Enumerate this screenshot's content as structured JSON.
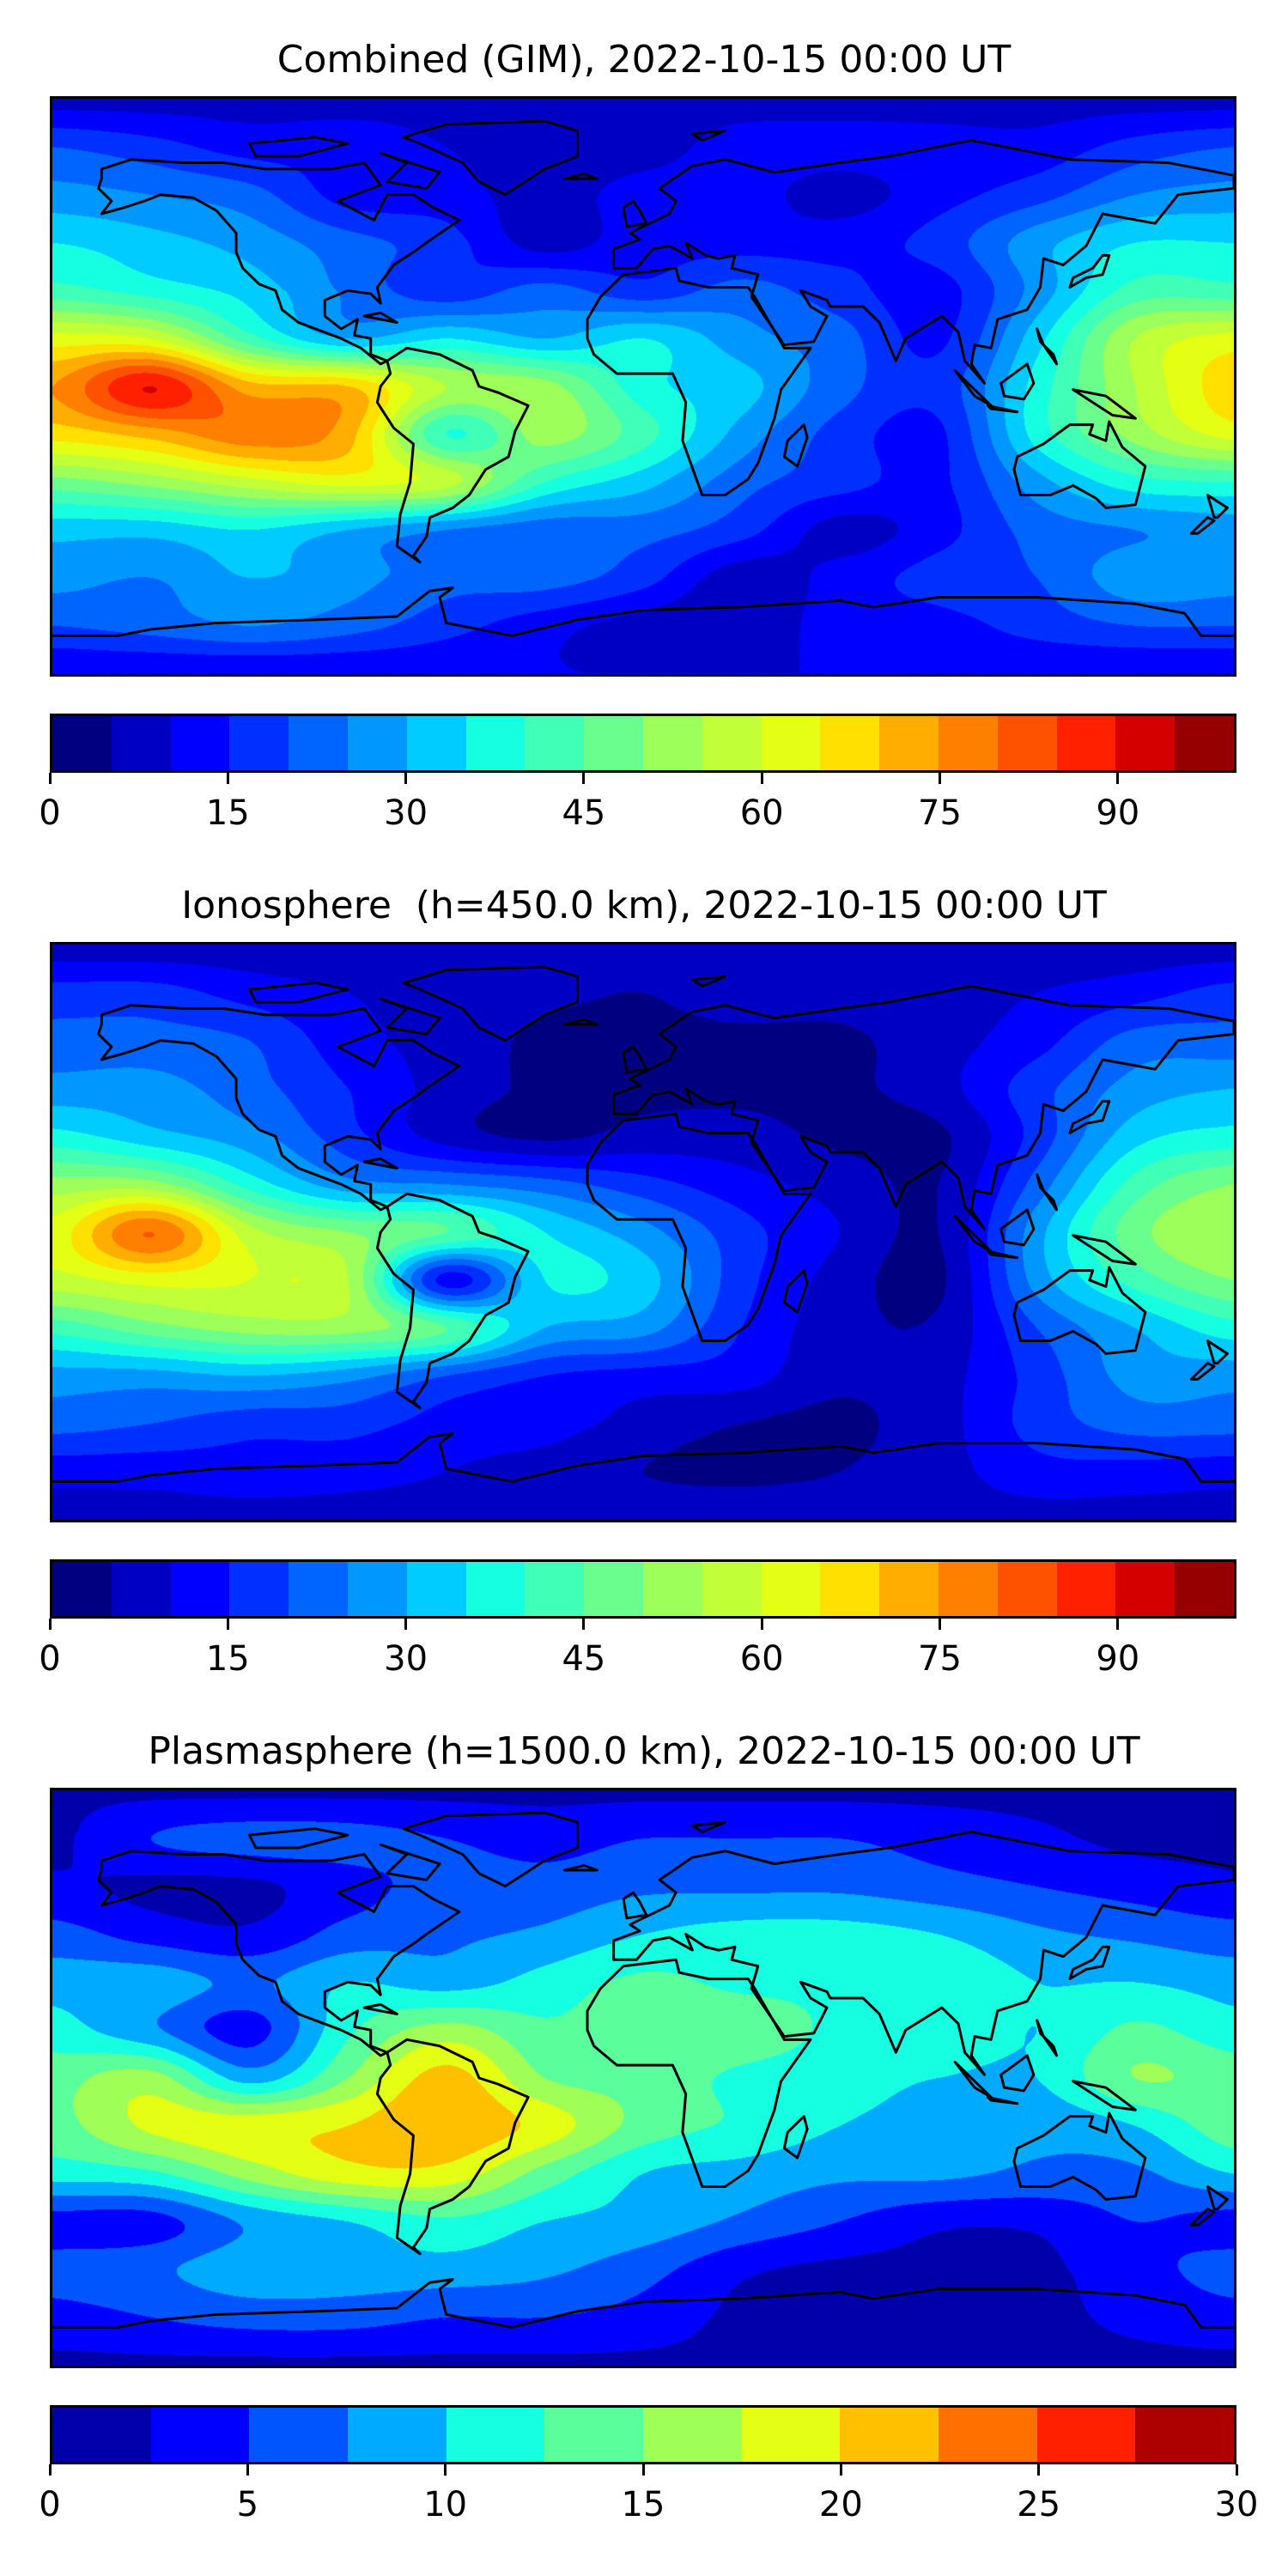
{
  "chart_data": [
    {
      "type": "heatmap",
      "title": "Combined (GIM), 2022-10-15 00:00 UT",
      "projection": "plate-carree",
      "lon_range": [
        -180,
        180
      ],
      "lat_range": [
        -90,
        90
      ],
      "grid_lons": [
        -180,
        -150,
        -120,
        -90,
        -60,
        -30,
        0,
        30,
        60,
        90,
        120,
        150,
        180
      ],
      "grid_lats": [
        90,
        75,
        60,
        45,
        30,
        15,
        0,
        -15,
        -30,
        -45,
        -60,
        -75,
        -90
      ],
      "values": [
        [
          8,
          8,
          8,
          8,
          8,
          8,
          8,
          8,
          8,
          8,
          8,
          8,
          8
        ],
        [
          20,
          17,
          13,
          13,
          10,
          8,
          8,
          12,
          12,
          12,
          12,
          17,
          20
        ],
        [
          27,
          25,
          22,
          13,
          12,
          8,
          12,
          12,
          8,
          13,
          18,
          25,
          27
        ],
        [
          35,
          32,
          28,
          22,
          17,
          8,
          13,
          13,
          13,
          17,
          28,
          35,
          35
        ],
        [
          42,
          38,
          33,
          24,
          17,
          22,
          17,
          22,
          17,
          13,
          27,
          42,
          42
        ],
        [
          62,
          60,
          42,
          30,
          35,
          30,
          35,
          27,
          22,
          14,
          33,
          55,
          62
        ],
        [
          75,
          90,
          72,
          70,
          55,
          52,
          37,
          32,
          22,
          17,
          37,
          55,
          68
        ],
        [
          67,
          72,
          78,
          72,
          40,
          52,
          42,
          28,
          18,
          14,
          37,
          52,
          62
        ],
        [
          48,
          52,
          58,
          62,
          57,
          40,
          32,
          22,
          17,
          14,
          28,
          38,
          40
        ],
        [
          32,
          32,
          35,
          30,
          25,
          22,
          22,
          17,
          8,
          13,
          22,
          25,
          27
        ],
        [
          27,
          25,
          30,
          27,
          22,
          22,
          17,
          7,
          12,
          17,
          20,
          28,
          27
        ],
        [
          20,
          22,
          25,
          22,
          17,
          12,
          8,
          7,
          12,
          13,
          17,
          20,
          20
        ],
        [
          10,
          10,
          10,
          10,
          10,
          10,
          10,
          10,
          10,
          10,
          10,
          10,
          10
        ]
      ],
      "colorbar": {
        "vmin": 0,
        "vmax": 100,
        "step": 5,
        "ticks": [
          "0",
          "15",
          "30",
          "45",
          "60",
          "75",
          "90"
        ],
        "tick_values": [
          0,
          15,
          30,
          45,
          60,
          75,
          90
        ],
        "colors": [
          "#000080",
          "#0000c4",
          "#0000ff",
          "#0030ff",
          "#0064ff",
          "#0098ff",
          "#00ccff",
          "#16ffe1",
          "#40ffb7",
          "#6aff8d",
          "#9cff5a",
          "#c1ff36",
          "#e4ff13",
          "#ffe000",
          "#ffad00",
          "#ff8000",
          "#ff5200",
          "#ff2000",
          "#d40000",
          "#960000"
        ]
      }
    },
    {
      "type": "heatmap",
      "title": "Ionosphere  (h=450.0 km), 2022-10-15 00:00 UT",
      "projection": "plate-carree",
      "lon_range": [
        -180,
        180
      ],
      "lat_range": [
        -90,
        90
      ],
      "grid_lons": [
        -180,
        -150,
        -120,
        -90,
        -60,
        -30,
        0,
        30,
        60,
        90,
        120,
        150,
        180
      ],
      "grid_lats": [
        90,
        75,
        60,
        45,
        30,
        15,
        0,
        -15,
        -30,
        -45,
        -60,
        -75,
        -90
      ],
      "values": [
        [
          7,
          7,
          7,
          7,
          7,
          7,
          7,
          7,
          7,
          7,
          7,
          7,
          7
        ],
        [
          17,
          17,
          13,
          10,
          8,
          6,
          5,
          7,
          7,
          8,
          10,
          13,
          17
        ],
        [
          22,
          22,
          20,
          12,
          8,
          4,
          4,
          4,
          4,
          8,
          13,
          22,
          22
        ],
        [
          27,
          27,
          22,
          15,
          8,
          4,
          4,
          4,
          4,
          8,
          18,
          27,
          30
        ],
        [
          37,
          32,
          27,
          17,
          8,
          4,
          7,
          7,
          4,
          4,
          17,
          33,
          37
        ],
        [
          52,
          52,
          38,
          27,
          25,
          22,
          17,
          12,
          8,
          5,
          22,
          42,
          50
        ],
        [
          62,
          80,
          57,
          50,
          45,
          35,
          27,
          17,
          10,
          5,
          28,
          48,
          55
        ],
        [
          58,
          62,
          60,
          55,
          13,
          35,
          32,
          17,
          8,
          4,
          27,
          42,
          50
        ],
        [
          42,
          48,
          52,
          52,
          45,
          30,
          27,
          15,
          7,
          6,
          20,
          30,
          38
        ],
        [
          28,
          28,
          30,
          27,
          20,
          15,
          13,
          12,
          6,
          8,
          17,
          27,
          27
        ],
        [
          22,
          20,
          17,
          17,
          13,
          12,
          8,
          5,
          4,
          8,
          17,
          22,
          22
        ],
        [
          12,
          12,
          13,
          12,
          10,
          8,
          5,
          4,
          5,
          8,
          13,
          13,
          12
        ],
        [
          8,
          8,
          8,
          8,
          8,
          8,
          8,
          8,
          8,
          8,
          8,
          8,
          8
        ]
      ],
      "colorbar": {
        "vmin": 0,
        "vmax": 100,
        "step": 5,
        "ticks": [
          "0",
          "15",
          "30",
          "45",
          "60",
          "75",
          "90"
        ],
        "tick_values": [
          0,
          15,
          30,
          45,
          60,
          75,
          90
        ],
        "colors": [
          "#000080",
          "#0000c4",
          "#0000ff",
          "#0030ff",
          "#0064ff",
          "#0098ff",
          "#00ccff",
          "#16ffe1",
          "#40ffb7",
          "#6aff8d",
          "#9cff5a",
          "#c1ff36",
          "#e4ff13",
          "#ffe000",
          "#ffad00",
          "#ff8000",
          "#ff5200",
          "#ff2000",
          "#d40000",
          "#960000"
        ]
      }
    },
    {
      "type": "heatmap",
      "title": "Plasmasphere (h=1500.0 km), 2022-10-15 00:00 UT",
      "projection": "plate-carree",
      "lon_range": [
        -180,
        180
      ],
      "lat_range": [
        -90,
        90
      ],
      "grid_lons": [
        -180,
        -150,
        -120,
        -90,
        -60,
        -30,
        0,
        30,
        60,
        90,
        120,
        150,
        180
      ],
      "grid_lats": [
        90,
        75,
        60,
        45,
        30,
        15,
        0,
        -15,
        -30,
        -45,
        -60,
        -75,
        -90
      ],
      "values": [
        [
          2,
          2,
          2,
          2,
          2,
          2,
          2,
          2,
          2,
          2,
          2,
          2,
          2
        ],
        [
          2,
          5,
          6,
          6,
          5,
          4,
          5,
          5,
          5,
          4,
          3,
          2,
          2
        ],
        [
          3,
          2,
          2,
          4,
          6,
          6,
          7,
          7,
          7,
          6,
          5,
          4,
          3
        ],
        [
          6,
          4,
          3,
          6,
          7,
          8,
          10,
          11,
          11,
          10,
          8,
          7,
          6
        ],
        [
          9,
          9,
          7,
          10,
          9,
          11,
          13,
          12,
          12,
          12,
          10,
          10,
          9
        ],
        [
          11,
          8,
          4,
          12,
          16,
          13,
          14,
          14,
          12,
          12,
          10,
          13,
          11
        ],
        [
          14,
          16,
          9,
          15,
          21,
          15,
          14,
          12,
          11,
          10,
          10,
          15,
          14
        ],
        [
          14,
          18,
          19,
          20,
          22,
          19,
          14,
          12,
          10,
          9,
          8,
          10,
          14
        ],
        [
          11,
          12,
          16,
          19,
          19,
          14,
          10,
          9,
          8,
          8,
          7,
          7,
          10
        ],
        [
          4,
          4,
          8,
          10,
          12,
          10,
          9,
          7,
          5,
          3,
          3,
          5,
          4
        ],
        [
          6,
          7,
          9,
          9,
          9,
          8,
          6,
          3,
          2,
          2,
          2,
          4,
          6
        ],
        [
          4,
          5,
          6,
          6,
          5,
          5,
          4,
          2,
          2,
          2,
          2,
          3,
          4
        ],
        [
          2,
          2,
          2,
          2,
          2,
          2,
          2,
          2,
          2,
          2,
          2,
          2,
          2
        ]
      ],
      "colorbar": {
        "vmin": 0,
        "vmax": 30,
        "step": 2.5,
        "ticks": [
          "0",
          "5",
          "10",
          "15",
          "20",
          "25",
          "30"
        ],
        "tick_values": [
          0,
          5,
          10,
          15,
          20,
          25,
          30
        ],
        "colors": [
          "#0000aa",
          "#0000ff",
          "#0055ff",
          "#00aaff",
          "#16ffe1",
          "#5aff9c",
          "#a0ff56",
          "#e4ff13",
          "#ffc000",
          "#ff7000",
          "#ff2000",
          "#ad0000"
        ]
      }
    }
  ]
}
